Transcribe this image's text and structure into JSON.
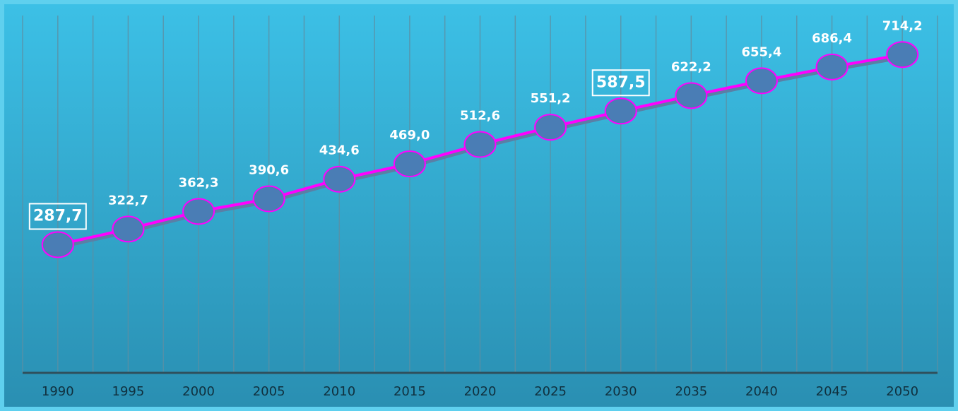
{
  "chart_data": {
    "type": "line",
    "categories": [
      "1990",
      "1995",
      "2000",
      "2005",
      "2010",
      "2015",
      "2020",
      "2025",
      "2030",
      "2035",
      "2040",
      "2045",
      "2050"
    ],
    "values": [
      287.7,
      322.7,
      362.3,
      390.6,
      434.6,
      469.0,
      512.6,
      551.2,
      587.5,
      622.2,
      655.4,
      686.4,
      714.2
    ],
    "value_labels": [
      "287,7",
      "322,7",
      "362,3",
      "390,6",
      "434,6",
      "469,0",
      "512,6",
      "551,2",
      "587,5",
      "622,2",
      "655,4",
      "686,4",
      "714,2"
    ],
    "highlighted": [
      0,
      8
    ],
    "color": "#ff00ff",
    "marker_color": "#4a7db5",
    "ylim": [
      0,
      805
    ]
  }
}
